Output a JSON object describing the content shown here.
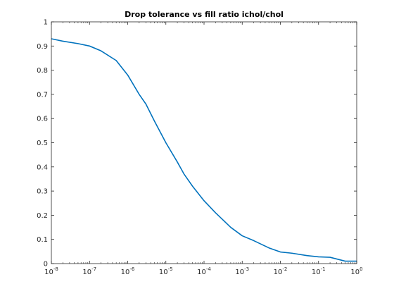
{
  "chart_data": {
    "type": "line",
    "title": "Drop tolerance vs fill ratio ichol/chol",
    "xlabel": "",
    "ylabel": "",
    "xscale": "log",
    "xlim": [
      1e-08,
      1
    ],
    "ylim": [
      0,
      1
    ],
    "grid": false,
    "x_ticks": [
      {
        "value": 1e-08,
        "base": "10",
        "exp": "-8"
      },
      {
        "value": 1e-07,
        "base": "10",
        "exp": "-7"
      },
      {
        "value": 1e-06,
        "base": "10",
        "exp": "-6"
      },
      {
        "value": 1e-05,
        "base": "10",
        "exp": "-5"
      },
      {
        "value": 0.0001,
        "base": "10",
        "exp": "-4"
      },
      {
        "value": 0.001,
        "base": "10",
        "exp": "-3"
      },
      {
        "value": 0.01,
        "base": "10",
        "exp": "-2"
      },
      {
        "value": 0.1,
        "base": "10",
        "exp": "-1"
      },
      {
        "value": 1,
        "base": "10",
        "exp": "0"
      }
    ],
    "y_ticks": [
      {
        "value": 0,
        "label": "0"
      },
      {
        "value": 0.1,
        "label": "0.1"
      },
      {
        "value": 0.2,
        "label": "0.2"
      },
      {
        "value": 0.3,
        "label": "0.3"
      },
      {
        "value": 0.4,
        "label": "0.4"
      },
      {
        "value": 0.5,
        "label": "0.5"
      },
      {
        "value": 0.6,
        "label": "0.6"
      },
      {
        "value": 0.7,
        "label": "0.7"
      },
      {
        "value": 0.8,
        "label": "0.8"
      },
      {
        "value": 0.9,
        "label": "0.9"
      },
      {
        "value": 1,
        "label": "1"
      }
    ],
    "series": [
      {
        "color": "#0072bd",
        "x": [
          1e-08,
          2e-08,
          5e-08,
          1e-07,
          2e-07,
          5e-07,
          1e-06,
          2e-06,
          3e-06,
          5e-06,
          1e-05,
          2e-05,
          3e-05,
          5e-05,
          0.0001,
          0.0002,
          0.0005,
          0.001,
          0.002,
          0.005,
          0.01,
          0.02,
          0.05,
          0.1,
          0.2,
          0.5,
          1
        ],
        "y": [
          0.93,
          0.92,
          0.91,
          0.9,
          0.88,
          0.84,
          0.78,
          0.7,
          0.66,
          0.59,
          0.5,
          0.42,
          0.37,
          0.32,
          0.26,
          0.21,
          0.15,
          0.115,
          0.095,
          0.065,
          0.048,
          0.043,
          0.033,
          0.028,
          0.026,
          0.01,
          0.01
        ]
      }
    ]
  }
}
